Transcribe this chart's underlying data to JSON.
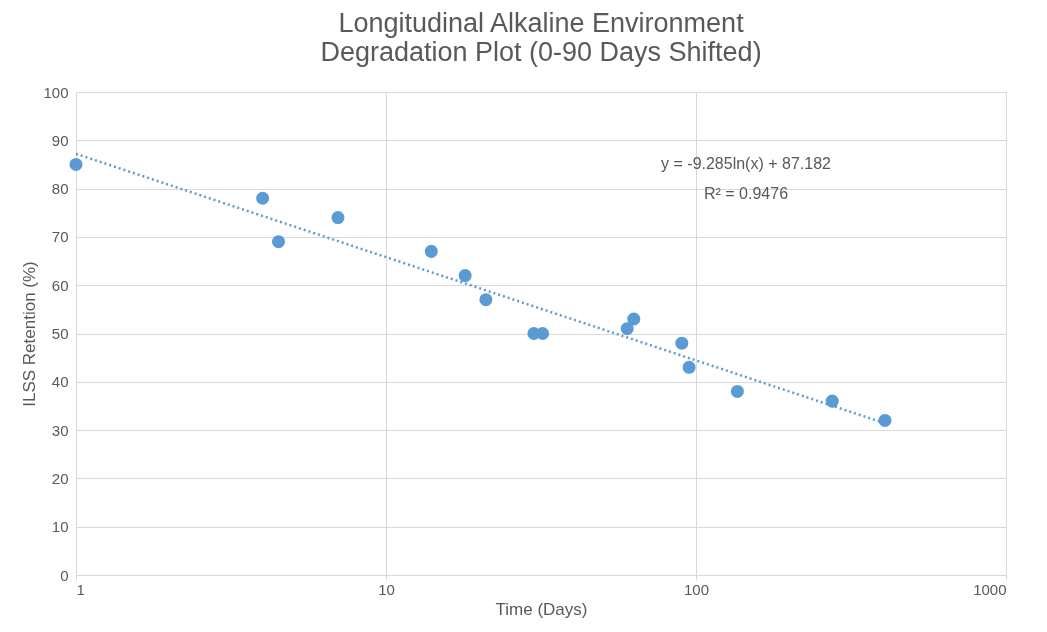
{
  "chart_data": {
    "type": "scatter",
    "title": "Longitudinal Alkaline Environment\nDegradation Plot (0-90 Days Shifted)",
    "xlabel": "Time (Days)",
    "ylabel": "ILSS Retention (%)",
    "x": [
      1,
      4,
      4.5,
      7,
      14,
      18,
      21,
      30,
      32,
      60,
      63,
      90,
      95,
      136,
      275,
      407
    ],
    "series": [
      {
        "color": "#5b9bd5",
        "marker": "circle",
        "values": [
          85,
          78,
          69,
          74,
          67,
          62,
          57,
          50,
          50,
          51,
          53,
          48,
          43,
          38,
          36,
          32
        ]
      },
      {
        "type": "line",
        "color": "#5b9bd5",
        "line_style": "dotted",
        "marker": "none",
        "x": [
          1,
          407
        ],
        "values": [
          87.2,
          31.4
        ]
      }
    ],
    "annotations": [
      "y = -9.285ln(x) + 87.182",
      "R² = 0.9476"
    ],
    "log": "x",
    "xlim": [
      1,
      1000
    ],
    "xticks": [
      1,
      10,
      100,
      1000
    ],
    "ylim": [
      0,
      100
    ],
    "yticks": [
      0,
      10,
      20,
      30,
      40,
      50,
      60,
      70,
      80,
      90,
      100
    ],
    "grid": true
  }
}
